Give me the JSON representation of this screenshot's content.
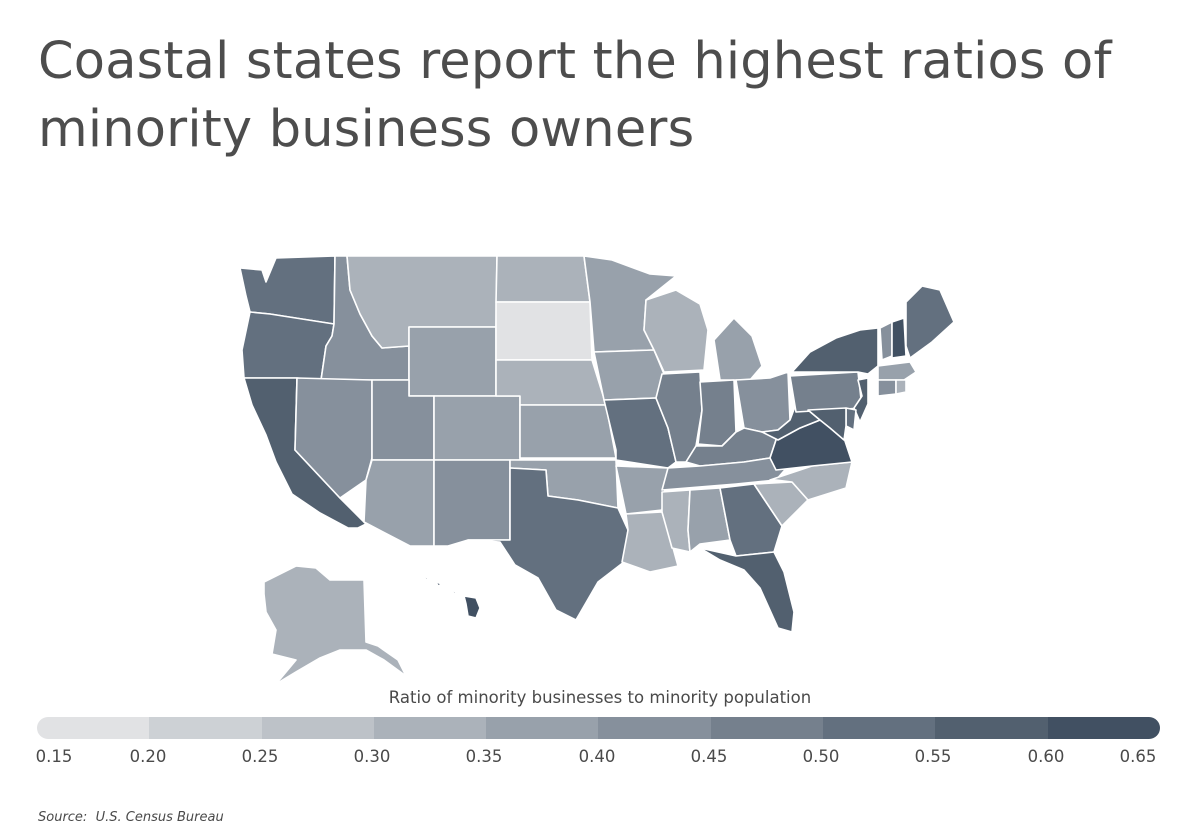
{
  "title": "Coastal states report the highest ratios of minority business owners",
  "legend": {
    "title": "Ratio of minority businesses to minority population",
    "ticks": [
      "0.15",
      "0.20",
      "0.25",
      "0.30",
      "0.35",
      "0.40",
      "0.45",
      "0.50",
      "0.55",
      "0.60",
      "0.65"
    ],
    "colors": [
      "#e1e2e4",
      "#cdd1d5",
      "#bdc2c8",
      "#abb2ba",
      "#98a1ab",
      "#86909c",
      "#75808d",
      "#63707f",
      "#52606f",
      "#415062",
      "#324457"
    ]
  },
  "source": {
    "label": "Source:",
    "text": "U.S. Census Bureau"
  },
  "map_data": {
    "WA": 0.5,
    "OR": 0.5,
    "CA": 0.55,
    "NV": 0.4,
    "ID": 0.4,
    "MT": 0.3,
    "WY": 0.35,
    "UT": 0.4,
    "AZ": 0.35,
    "CO": 0.35,
    "NM": 0.4,
    "ND": 0.3,
    "SD": 0.15,
    "NE": 0.3,
    "KS": 0.35,
    "OK": 0.35,
    "TX": 0.5,
    "MN": 0.35,
    "IA": 0.35,
    "MO": 0.5,
    "AR": 0.35,
    "LA": 0.3,
    "WI": 0.3,
    "IL": 0.45,
    "MI": 0.35,
    "IN": 0.45,
    "OH": 0.4,
    "KY": 0.45,
    "TN": 0.4,
    "MS": 0.3,
    "AL": 0.35,
    "GA": 0.5,
    "FL": 0.55,
    "SC": 0.3,
    "NC": 0.3,
    "VA": 0.6,
    "WV": 0.55,
    "PA": 0.45,
    "NY": 0.55,
    "VT": 0.4,
    "NH": 0.6,
    "ME": 0.5,
    "MA": 0.35,
    "CT": 0.4,
    "RI": 0.3,
    "NJ": 0.55,
    "DE": 0.5,
    "MD": 0.55,
    "AK": 0.3,
    "HI": 0.6
  }
}
